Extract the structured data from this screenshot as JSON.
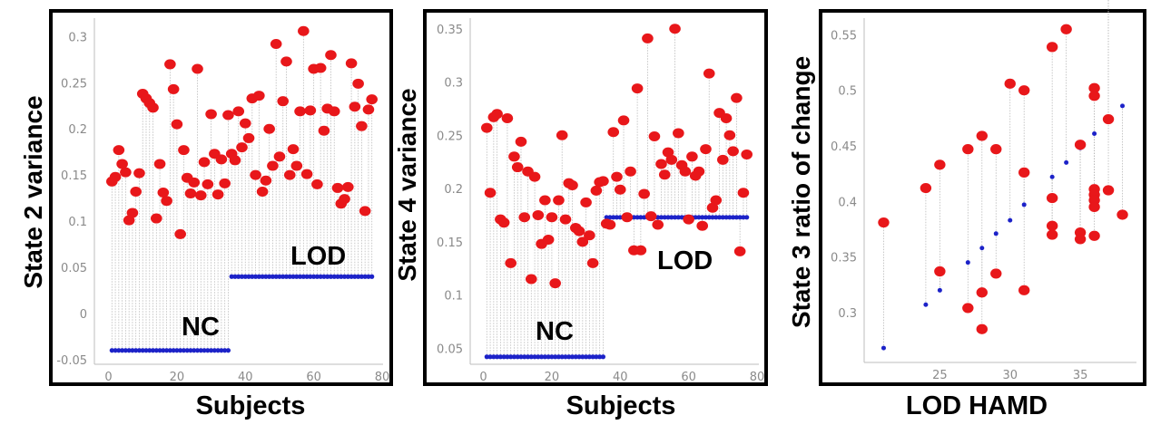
{
  "chart_data": [
    {
      "type": "stem-scatter",
      "ylabel": "State 2 variance",
      "xlabel": "Subjects",
      "xlim": [
        -2,
        80
      ],
      "ylim": [
        -0.055,
        0.32
      ],
      "xticks": [
        "0",
        "20",
        "40",
        "60",
        "80"
      ],
      "yticks": [
        "-0.05",
        "0",
        "0.05",
        "0.1",
        "0.15",
        "0.2",
        "0.25",
        "0.3"
      ],
      "group_labels": [
        "NC",
        "LOD"
      ],
      "series": [
        {
          "name": "NC",
          "n": 35,
          "x_start": 1,
          "baseline_value": -0.04
        },
        {
          "name": "LOD",
          "n": 42,
          "x_start": 36,
          "baseline_value": 0.04
        }
      ],
      "red_values": [
        0.143,
        0.148,
        0.177,
        0.162,
        0.153,
        0.101,
        0.109,
        0.132,
        0.152,
        0.238,
        0.233,
        0.228,
        0.223,
        0.103,
        0.162,
        0.131,
        0.122,
        0.27,
        0.243,
        0.205,
        0.086,
        0.177,
        0.147,
        0.13,
        0.142,
        0.265,
        0.128,
        0.164,
        0.14,
        0.216,
        0.173,
        0.129,
        0.167,
        0.141,
        0.215,
        0.173,
        0.166,
        0.219,
        0.18,
        0.206,
        0.19,
        0.233,
        0.15,
        0.236,
        0.132,
        0.144,
        0.2,
        0.16,
        0.292,
        0.17,
        0.23,
        0.273,
        0.15,
        0.178,
        0.16,
        0.219,
        0.306,
        0.151,
        0.22,
        0.265,
        0.14,
        0.266,
        0.198,
        0.222,
        0.28,
        0.219,
        0.136,
        0.119,
        0.124,
        0.137,
        0.271,
        0.224,
        0.249,
        0.203,
        0.111,
        0.221,
        0.232
      ]
    },
    {
      "type": "stem-scatter",
      "ylabel": "State 4 variance",
      "xlabel": "Subjects",
      "xlim": [
        -2,
        80
      ],
      "ylim": [
        0.035,
        0.36
      ],
      "xticks": [
        "0",
        "20",
        "40",
        "60",
        "80"
      ],
      "yticks": [
        "0.05",
        "0.1",
        "0.15",
        "0.2",
        "0.25",
        "0.3",
        "0.35"
      ],
      "group_labels": [
        "NC",
        "LOD"
      ],
      "series": [
        {
          "name": "NC",
          "n": 35,
          "x_start": 1,
          "baseline_value": 0.042
        },
        {
          "name": "LOD",
          "n": 42,
          "x_start": 36,
          "baseline_value": 0.173
        }
      ],
      "red_values": [
        0.257,
        0.196,
        0.267,
        0.27,
        0.171,
        0.168,
        0.266,
        0.13,
        0.23,
        0.22,
        0.244,
        0.173,
        0.216,
        0.115,
        0.211,
        0.175,
        0.148,
        0.189,
        0.152,
        0.173,
        0.111,
        0.189,
        0.25,
        0.171,
        0.205,
        0.203,
        0.163,
        0.16,
        0.15,
        0.187,
        0.156,
        0.13,
        0.198,
        0.206,
        0.207,
        0.167,
        0.166,
        0.253,
        0.211,
        0.199,
        0.264,
        0.173,
        0.216,
        0.142,
        0.294,
        0.142,
        0.195,
        0.341,
        0.174,
        0.249,
        0.166,
        0.223,
        0.213,
        0.234,
        0.227,
        0.35,
        0.252,
        0.222,
        0.216,
        0.171,
        0.23,
        0.212,
        0.216,
        0.165,
        0.237,
        0.308,
        0.182,
        0.189,
        0.271,
        0.227,
        0.266,
        0.25,
        0.235,
        0.285,
        0.141,
        0.196,
        0.232
      ]
    },
    {
      "type": "stem-scatter",
      "ylabel": "State 3  ratio of change",
      "xlabel": "LOD HAMD",
      "xlim": [
        20,
        39
      ],
      "ylim": [
        0.255,
        0.565
      ],
      "xticks": [
        "25",
        "30",
        "35"
      ],
      "yticks": [
        "0.3",
        "0.35",
        "0.4",
        "0.45",
        "0.5",
        "0.55"
      ],
      "fit": [
        {
          "x": 21,
          "y": 0.268
        },
        {
          "x": 24,
          "y": 0.307
        },
        {
          "x": 25,
          "y": 0.32
        },
        {
          "x": 27,
          "y": 0.345
        },
        {
          "x": 28,
          "y": 0.358
        },
        {
          "x": 29,
          "y": 0.371
        },
        {
          "x": 30,
          "y": 0.383
        },
        {
          "x": 31,
          "y": 0.397
        },
        {
          "x": 33,
          "y": 0.422
        },
        {
          "x": 34,
          "y": 0.435
        },
        {
          "x": 35,
          "y": 0.448
        },
        {
          "x": 36,
          "y": 0.461
        },
        {
          "x": 38,
          "y": 0.486
        }
      ],
      "points": [
        {
          "x": 21,
          "y": 0.381
        },
        {
          "x": 24,
          "y": 0.412
        },
        {
          "x": 25,
          "y": 0.433
        },
        {
          "x": 25,
          "y": 0.337
        },
        {
          "x": 27,
          "y": 0.447
        },
        {
          "x": 27,
          "y": 0.304
        },
        {
          "x": 28,
          "y": 0.459
        },
        {
          "x": 28,
          "y": 0.318
        },
        {
          "x": 28,
          "y": 0.285
        },
        {
          "x": 29,
          "y": 0.447
        },
        {
          "x": 29,
          "y": 0.335
        },
        {
          "x": 30,
          "y": 0.506
        },
        {
          "x": 31,
          "y": 0.5
        },
        {
          "x": 31,
          "y": 0.426
        },
        {
          "x": 31,
          "y": 0.32
        },
        {
          "x": 33,
          "y": 0.539
        },
        {
          "x": 33,
          "y": 0.403
        },
        {
          "x": 33,
          "y": 0.378
        },
        {
          "x": 33,
          "y": 0.37
        },
        {
          "x": 34,
          "y": 0.555
        },
        {
          "x": 35,
          "y": 0.451
        },
        {
          "x": 35,
          "y": 0.372
        },
        {
          "x": 35,
          "y": 0.366
        },
        {
          "x": 36,
          "y": 0.502
        },
        {
          "x": 36,
          "y": 0.495
        },
        {
          "x": 36,
          "y": 0.411
        },
        {
          "x": 36,
          "y": 0.406
        },
        {
          "x": 36,
          "y": 0.401
        },
        {
          "x": 36,
          "y": 0.395
        },
        {
          "x": 36,
          "y": 0.369
        },
        {
          "x": 37,
          "y": 0.474
        },
        {
          "x": 37,
          "y": 0.41
        },
        {
          "x": 38,
          "y": 0.388
        }
      ]
    }
  ],
  "colors": {
    "marker": "#e8171a",
    "baseline": "#1c22c8",
    "stem": "#b9b9b9"
  }
}
